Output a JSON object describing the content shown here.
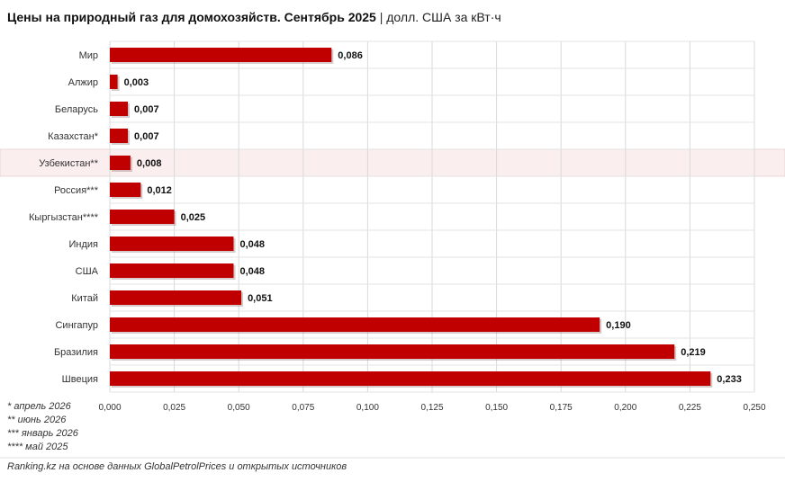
{
  "title": "Цены на природный газ для домохозяйств. Сентябрь 2025",
  "separator": "|",
  "unit": "долл. США за кВт·ч",
  "chart_data": {
    "type": "bar",
    "orientation": "horizontal",
    "title": "Цены на природный газ для домохозяйств. Сентябрь 2025",
    "categories": [
      "Мир",
      "Алжир",
      "Беларусь",
      "Казахстан*",
      "Узбекистан**",
      "Россия***",
      "Кыргызстан****",
      "Индия",
      "США",
      "Китай",
      "Сингапур",
      "Бразилия",
      "Швеция"
    ],
    "values": [
      0.086,
      0.003,
      0.007,
      0.007,
      0.008,
      0.012,
      0.025,
      0.048,
      0.048,
      0.051,
      0.19,
      0.219,
      0.233
    ],
    "value_labels": [
      "0,086",
      "0,003",
      "0,007",
      "0,007",
      "0,008",
      "0,012",
      "0,025",
      "0,048",
      "0,048",
      "0,051",
      "0,190",
      "0,219",
      "0,233"
    ],
    "highlighted_category": "Узбекистан**",
    "xlim": [
      0,
      0.25
    ],
    "xticks": [
      "0,000",
      "0,025",
      "0,050",
      "0,075",
      "0,100",
      "0,125",
      "0,150",
      "0,175",
      "0,200",
      "0,225",
      "0,250"
    ],
    "grid": true,
    "legend": "none",
    "bar_color": "#c00000",
    "highlight_color": "#fbeeee"
  },
  "notes": [
    "* апрель 2026",
    "** июнь 2026",
    "*** январь 2026",
    "**** май 2025"
  ],
  "source": "Ranking.kz на основе данных GlobalPetrolPrices и открытых источников"
}
